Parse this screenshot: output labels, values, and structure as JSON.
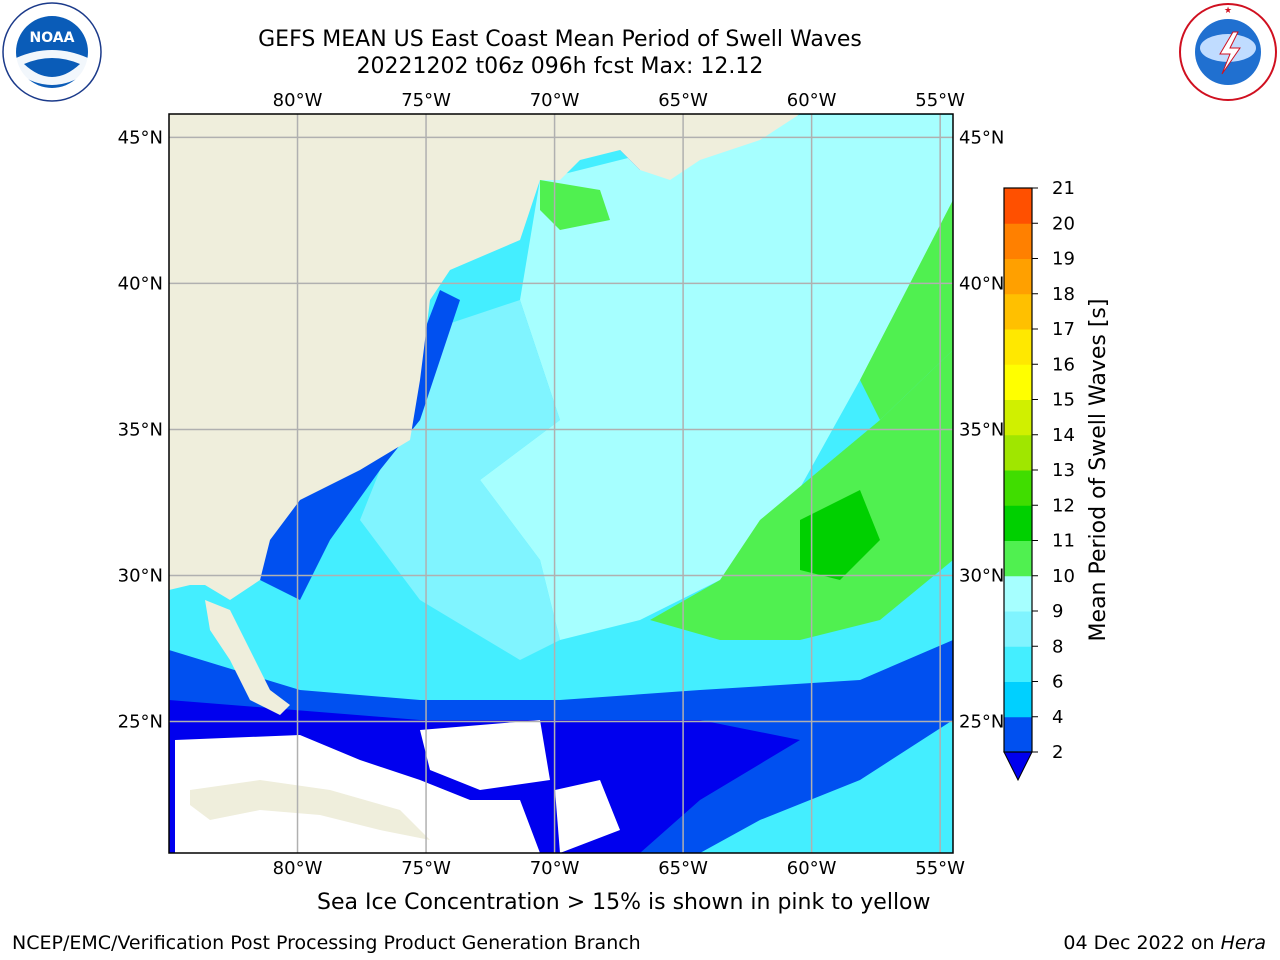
{
  "header": {
    "title_line1": "GEFS MEAN US East Coast Mean Period of Swell Waves",
    "title_line2": "20221202 t06z 096h fcst   Max: 12.12"
  },
  "logos": {
    "left": {
      "name": "noaa-logo",
      "text": "NOAA",
      "ring_text": "NATIONAL OCEANIC AND ATMOSPHERIC ADMINISTRATION · U.S. DEPARTMENT OF COMMERCE"
    },
    "right": {
      "name": "nws-logo",
      "ring_text": "NATIONAL WEATHER SERVICE"
    }
  },
  "map": {
    "lon_range": [
      -85,
      -54.5
    ],
    "lat_range": [
      20.5,
      45.8
    ],
    "lon_ticks": [
      "80°W",
      "75°W",
      "70°W",
      "65°W",
      "60°W",
      "55°W"
    ],
    "lat_ticks": [
      "45°N",
      "40°N",
      "35°N",
      "30°N",
      "25°N"
    ],
    "land_color": "#efeedc",
    "grid_color": "#b0b0b0"
  },
  "colorbar": {
    "label": "Mean Period of Swell Waves [s]",
    "ticks": [
      "2",
      "4",
      "6",
      "8",
      "9",
      "10",
      "11",
      "12",
      "13",
      "14",
      "15",
      "16",
      "17",
      "18",
      "19",
      "20",
      "21"
    ],
    "colors": [
      "#0050f0",
      "#00d0ff",
      "#44eeff",
      "#80f4ff",
      "#a6ffff",
      "#50f050",
      "#00d000",
      "#40dd00",
      "#a0e600",
      "#d0f000",
      "#ffff00",
      "#ffe800",
      "#ffc000",
      "#ffa000",
      "#ff8000",
      "#ff5000",
      "#ff2000",
      "#ff0000"
    ],
    "under_color": "#0000ee"
  },
  "footer": {
    "note": "Sea Ice Concentration > 15% is shown in pink to yellow",
    "credit": "NCEP/EMC/Verification Post Processing Product Generation Branch",
    "date": "04 Dec 2022 on",
    "machine": "Hera"
  }
}
